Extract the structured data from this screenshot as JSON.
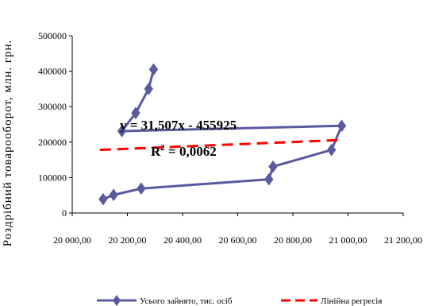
{
  "chart_data": {
    "type": "scatter",
    "title": "",
    "xlabel": "",
    "ylabel": "Роздрібний товарооборот, млн. грн.",
    "xlim": [
      20000,
      21200
    ],
    "ylim": [
      0,
      500000
    ],
    "x_ticks": [
      "20 000,00",
      "20 200,00",
      "20 400,00",
      "20 600,00",
      "20 800,00",
      "21 000,00",
      "21 200,00"
    ],
    "y_ticks": [
      "0",
      "100000",
      "200000",
      "300000",
      "400000",
      "500000"
    ],
    "grid": false,
    "legend_position": "bottom",
    "series": [
      {
        "name": "Усього зайнято, тис. осіб",
        "color": "#5a5aa0",
        "marker": "diamond",
        "points": [
          {
            "x": 20295,
            "y": 405000
          },
          {
            "x": 20277,
            "y": 350000
          },
          {
            "x": 20230,
            "y": 282000
          },
          {
            "x": 20180,
            "y": 231000
          },
          {
            "x": 20977,
            "y": 246000
          },
          {
            "x": 20940,
            "y": 178000
          },
          {
            "x": 20728,
            "y": 131000
          },
          {
            "x": 20713,
            "y": 95000
          },
          {
            "x": 20250,
            "y": 69000
          },
          {
            "x": 20150,
            "y": 51000
          },
          {
            "x": 20112,
            "y": 39000
          }
        ]
      },
      {
        "name": "Лінійна регресія",
        "color": "#ff0000",
        "dashed": true,
        "points": [
          {
            "x": 20100,
            "y": 178000
          },
          {
            "x": 20977,
            "y": 206000
          }
        ]
      }
    ],
    "annotations": {
      "equation": "y = 31,507x - 455925",
      "r2_prefix": "R",
      "r2_exp": "2",
      "r2_value": " = 0,0062"
    }
  }
}
